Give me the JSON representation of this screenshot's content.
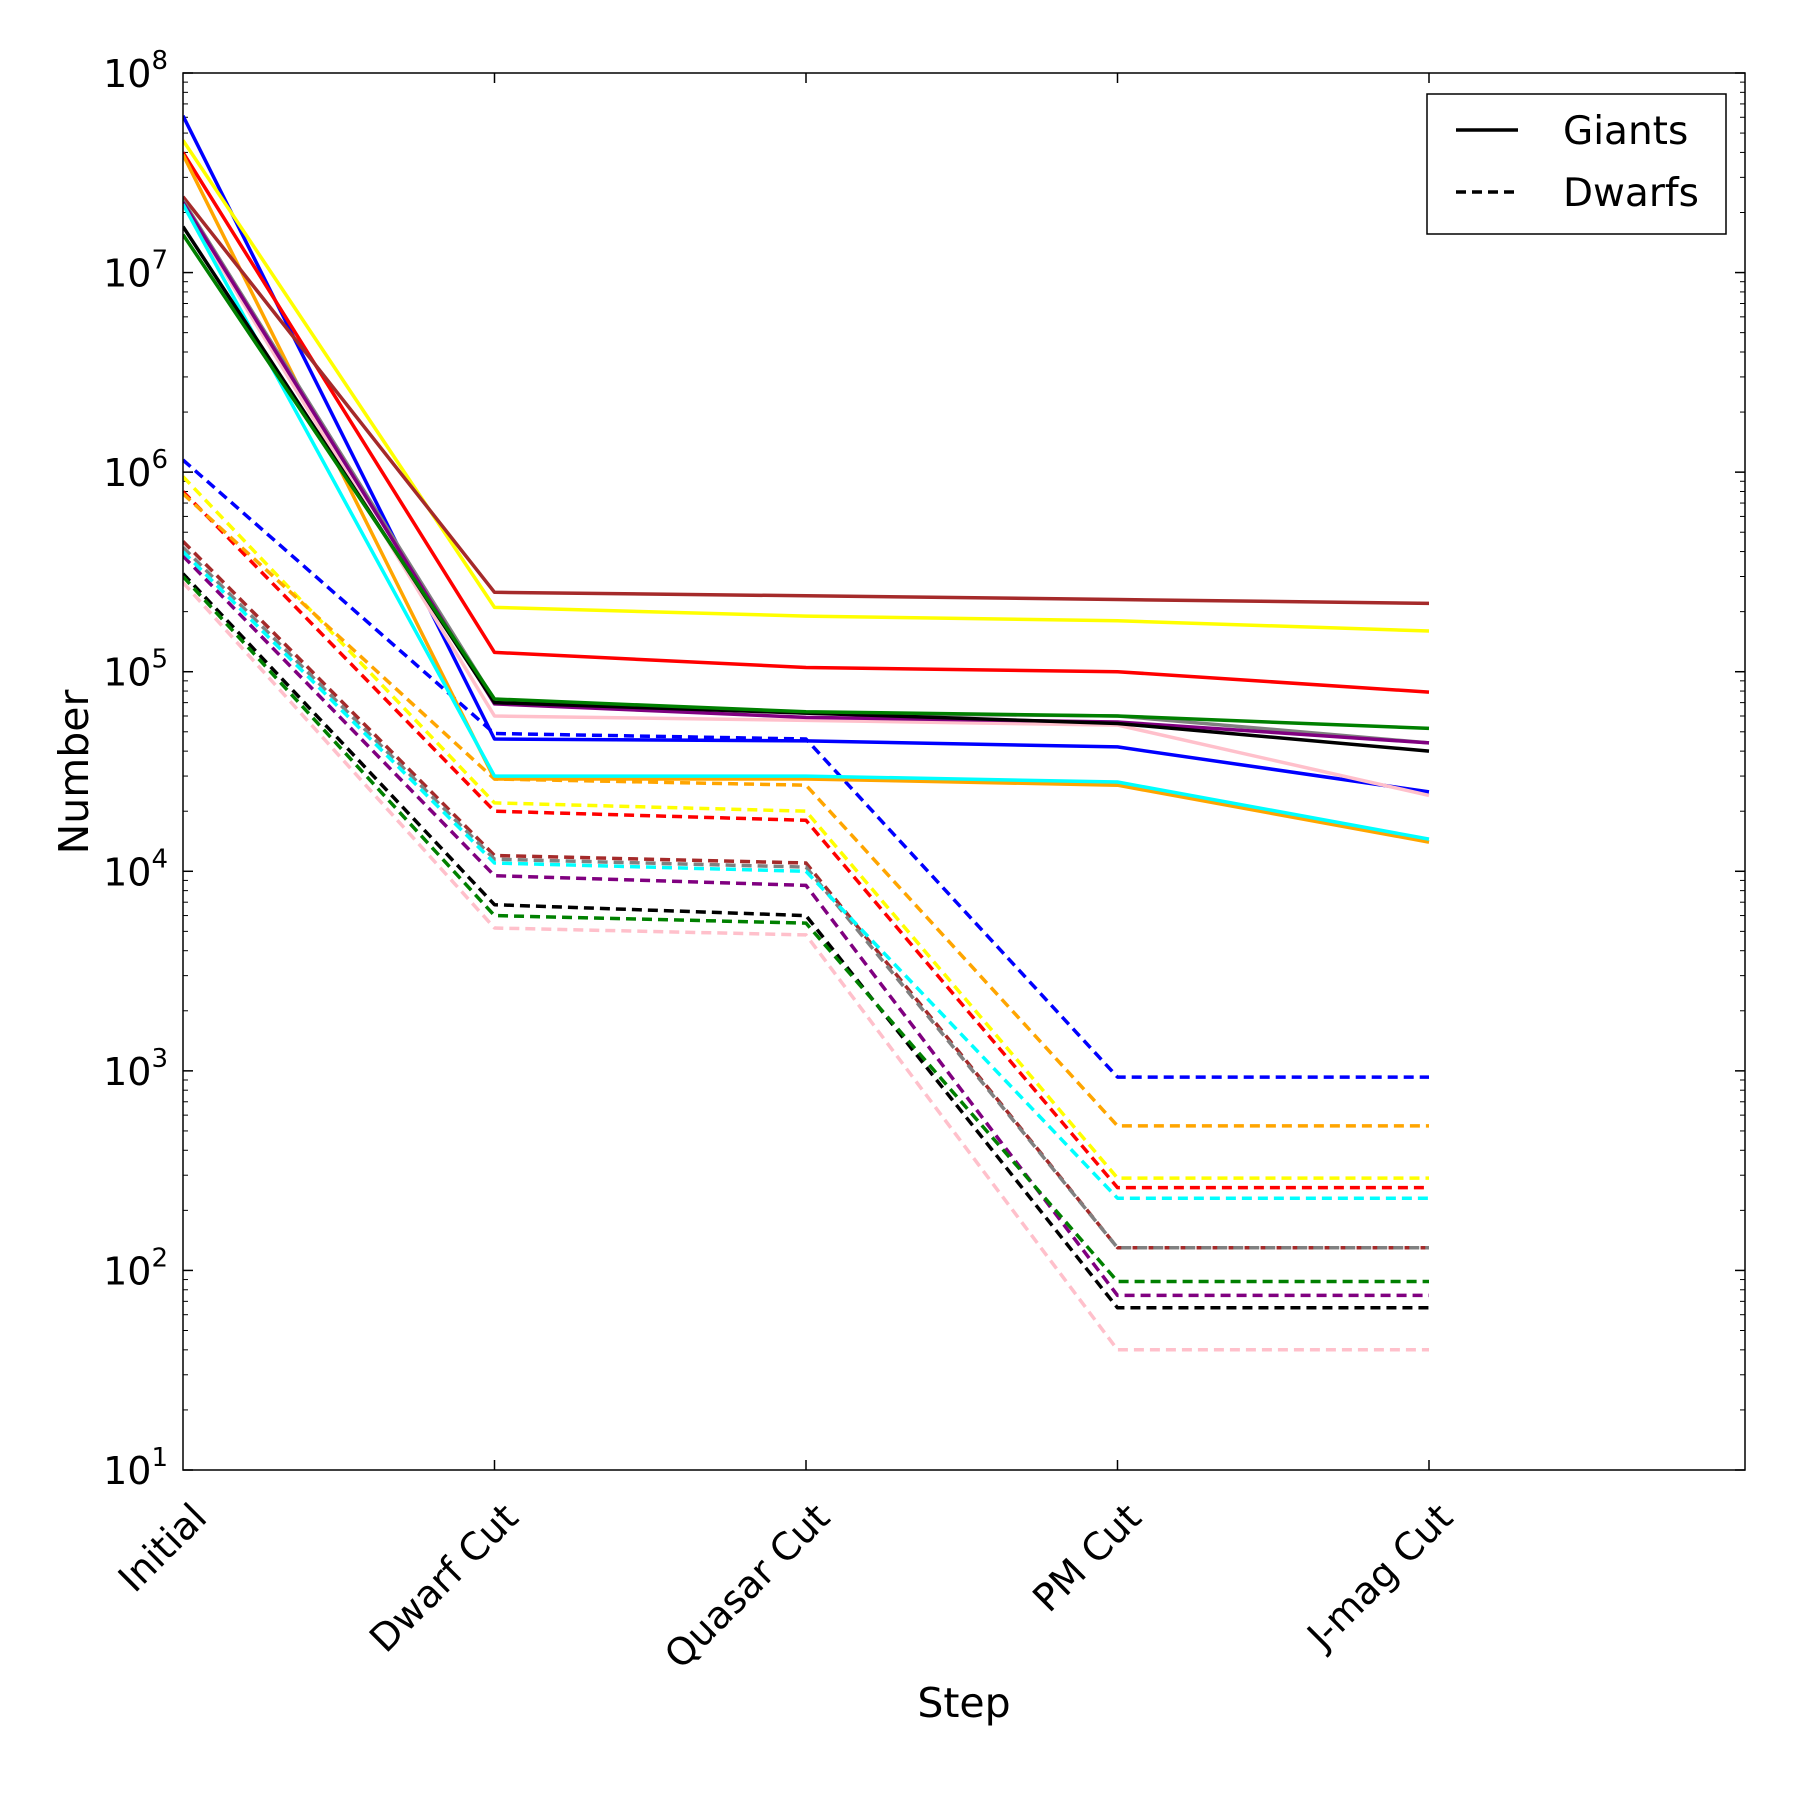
{
  "chart_data": {
    "type": "line",
    "title": "",
    "xlabel": "Step",
    "ylabel": "Number",
    "yscale": "log",
    "ylim": [
      10,
      100000000
    ],
    "yticks": [
      {
        "base": "10",
        "exp": "1"
      },
      {
        "base": "10",
        "exp": "2"
      },
      {
        "base": "10",
        "exp": "3"
      },
      {
        "base": "10",
        "exp": "4"
      },
      {
        "base": "10",
        "exp": "5"
      },
      {
        "base": "10",
        "exp": "6"
      },
      {
        "base": "10",
        "exp": "7"
      },
      {
        "base": "10",
        "exp": "8"
      }
    ],
    "categories": [
      "Initial",
      "Dwarf Cut",
      "Quasar Cut",
      "PM Cut",
      "J-mag Cut"
    ],
    "legend": {
      "position": "top-right",
      "entries": [
        {
          "label": "Giants",
          "style": "solid"
        },
        {
          "label": "Dwarfs",
          "style": "dashed"
        }
      ]
    },
    "series": [
      {
        "group": "Giants",
        "color": "#0000ff",
        "values": [
          61000000,
          46000,
          45000,
          42000,
          25000
        ]
      },
      {
        "group": "Giants",
        "color": "#ffff00",
        "values": [
          46000000,
          210000,
          190000,
          180000,
          160000
        ]
      },
      {
        "group": "Giants",
        "color": "#ff0000",
        "values": [
          40000000,
          125000,
          105000,
          100000,
          79000
        ]
      },
      {
        "group": "Giants",
        "color": "#ffa500",
        "values": [
          39000000,
          29000,
          29000,
          27000,
          14000
        ]
      },
      {
        "group": "Giants",
        "color": "#a52a2a",
        "values": [
          24000000,
          250000,
          240000,
          230000,
          220000
        ]
      },
      {
        "group": "Giants",
        "color": "#808080",
        "values": [
          23000000,
          72000,
          62000,
          60000,
          44000
        ]
      },
      {
        "group": "Giants",
        "color": "#ffc0cb",
        "values": [
          22000000,
          60000,
          57000,
          54000,
          24000
        ]
      },
      {
        "group": "Giants",
        "color": "#800080",
        "values": [
          22500000,
          69000,
          59000,
          56000,
          44000
        ]
      },
      {
        "group": "Giants",
        "color": "#00ffff",
        "values": [
          22000000,
          30000,
          30000,
          28000,
          14500
        ]
      },
      {
        "group": "Giants",
        "color": "#000000",
        "values": [
          17000000,
          70000,
          62000,
          55000,
          40000
        ]
      },
      {
        "group": "Giants",
        "color": "#008000",
        "values": [
          15500000,
          73000,
          63000,
          60000,
          52000
        ]
      },
      {
        "group": "Dwarfs",
        "color": "#0000ff",
        "values": [
          1150000,
          49000,
          46000,
          930,
          930
        ]
      },
      {
        "group": "Dwarfs",
        "color": "#ffff00",
        "values": [
          950000,
          22000,
          20000,
          290,
          290
        ]
      },
      {
        "group": "Dwarfs",
        "color": "#ff0000",
        "values": [
          800000,
          20000,
          18000,
          260,
          260
        ]
      },
      {
        "group": "Dwarfs",
        "color": "#ffa500",
        "values": [
          780000,
          29000,
          27000,
          530,
          530
        ]
      },
      {
        "group": "Dwarfs",
        "color": "#a52a2a",
        "values": [
          450000,
          12000,
          11000,
          130,
          130
        ]
      },
      {
        "group": "Dwarfs",
        "color": "#808080",
        "values": [
          420000,
          11500,
          10500,
          130,
          130
        ]
      },
      {
        "group": "Dwarfs",
        "color": "#800080",
        "values": [
          380000,
          9500,
          8500,
          75,
          75
        ]
      },
      {
        "group": "Dwarfs",
        "color": "#00ffff",
        "values": [
          400000,
          11000,
          10000,
          230,
          230
        ]
      },
      {
        "group": "Dwarfs",
        "color": "#000000",
        "values": [
          310000,
          6800,
          6000,
          65,
          65
        ]
      },
      {
        "group": "Dwarfs",
        "color": "#008000",
        "values": [
          300000,
          6000,
          5500,
          88,
          88
        ]
      },
      {
        "group": "Dwarfs",
        "color": "#ffc0cb",
        "values": [
          280000,
          5200,
          4800,
          40,
          40
        ]
      }
    ]
  }
}
